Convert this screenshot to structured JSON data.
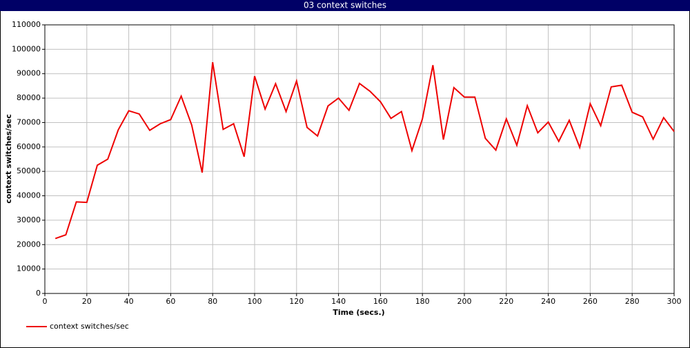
{
  "chart_data": {
    "type": "line",
    "title": "03 context switches",
    "x_label": "Time (secs.)",
    "y_label": "context switches/sec",
    "x": [
      5,
      10,
      15,
      20,
      25,
      30,
      35,
      40,
      45,
      50,
      55,
      60,
      65,
      70,
      75,
      80,
      85,
      90,
      95,
      100,
      105,
      110,
      115,
      120,
      125,
      130,
      135,
      140,
      145,
      150,
      155,
      160,
      165,
      170,
      175,
      180,
      185,
      190,
      195,
      200,
      205,
      210,
      215,
      220,
      225,
      230,
      235,
      240,
      245,
      250,
      255,
      260,
      265,
      270,
      275,
      280,
      285,
      290,
      295,
      300
    ],
    "series": [
      {
        "name": "context switches/sec",
        "color": "#ee0000",
        "values": [
          22500,
          24000,
          37500,
          37300,
          52500,
          55000,
          67000,
          74800,
          73500,
          66800,
          69500,
          71200,
          80800,
          69000,
          49500,
          94700,
          67200,
          69500,
          56000,
          89000,
          75500,
          85900,
          74500,
          87000,
          68000,
          64500,
          76800,
          80000,
          75000,
          86000,
          82800,
          78500,
          71700,
          74500,
          58500,
          71500,
          93500,
          63000,
          84300,
          80400,
          80400,
          63500,
          58700,
          71500,
          60700,
          76900,
          65800,
          70200,
          62300,
          70900,
          59800,
          77700,
          68700,
          84600,
          85300,
          74200,
          72300,
          63200,
          72000,
          66300
        ]
      }
    ],
    "xlim": [
      0,
      300
    ],
    "xticks": [
      0,
      20,
      40,
      60,
      80,
      100,
      120,
      140,
      160,
      180,
      200,
      220,
      240,
      260,
      280,
      300
    ],
    "ylim": [
      0,
      110000
    ],
    "yticks": [
      0,
      10000,
      20000,
      30000,
      40000,
      50000,
      60000,
      70000,
      80000,
      90000,
      100000,
      110000
    ],
    "grid": true,
    "legend": "bottom-left"
  }
}
